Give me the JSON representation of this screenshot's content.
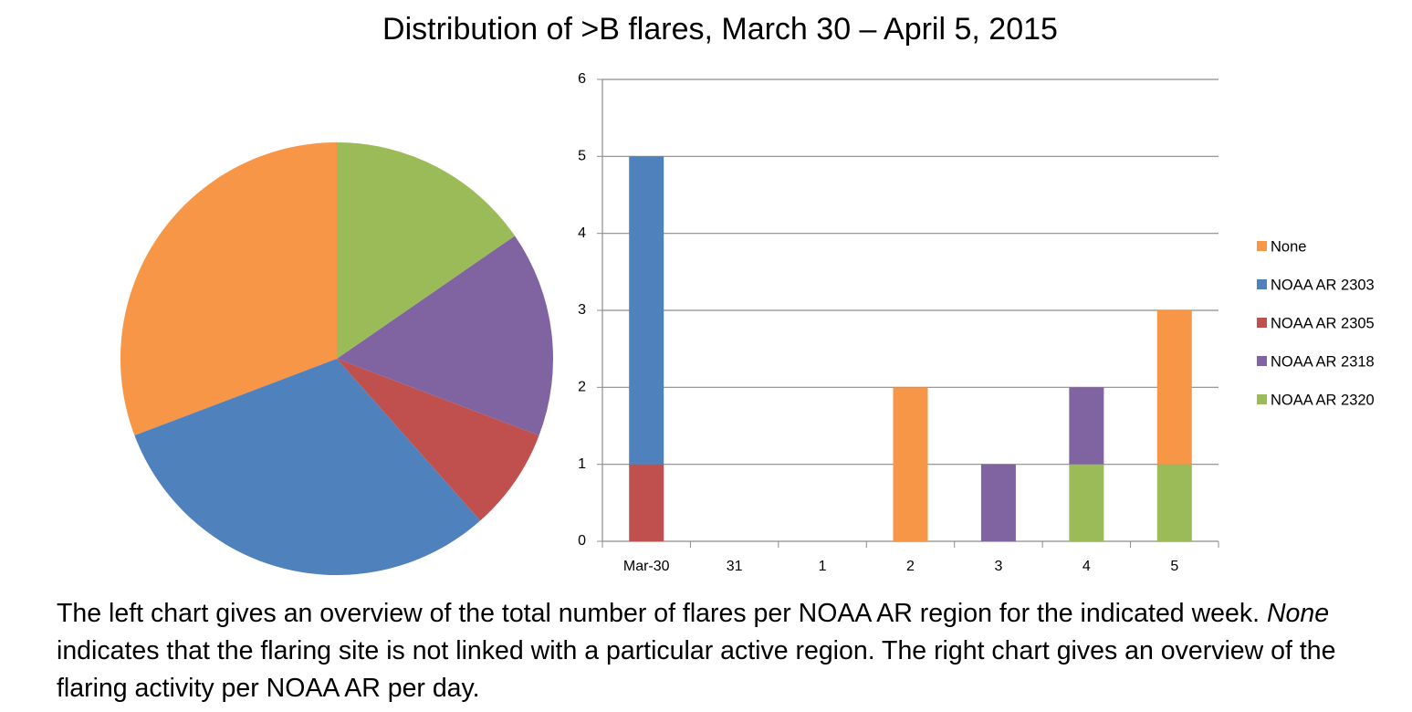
{
  "title": "Distribution of >B flares, March 30 – April 5, 2015",
  "caption": [
    "The left chart gives an overview of the total number of flares per NOAA AR region for the indicated week. ",
    "None",
    " indicates that the flaring site is not linked with a particular active region. The right chart gives an overview of the flaring activity per NOAA AR per day."
  ],
  "chart_data": [
    {
      "type": "pie",
      "values": [
        4,
        4,
        1,
        2,
        2
      ],
      "colors": [
        "#f79646",
        "#4f81bd",
        "#c0504d",
        "#8064a2",
        "#9bbb59"
      ]
    },
    {
      "type": "stacked-bar",
      "categories": [
        "Mar-30",
        "31",
        "1",
        "2",
        "3",
        "4",
        "5"
      ],
      "series": [
        {
          "name": "None",
          "color": "#f79646",
          "values": [
            0,
            0,
            0,
            2,
            0,
            0,
            2
          ]
        },
        {
          "name": "NOAA AR 2303",
          "color": "#4f81bd",
          "values": [
            4,
            0,
            0,
            0,
            0,
            0,
            0
          ]
        },
        {
          "name": "NOAA AR 2305",
          "color": "#c0504d",
          "values": [
            1,
            0,
            0,
            0,
            0,
            0,
            0
          ]
        },
        {
          "name": "NOAA AR 2318",
          "color": "#8064a2",
          "values": [
            0,
            0,
            0,
            0,
            1,
            1,
            0
          ]
        },
        {
          "name": "NOAA AR 2320",
          "color": "#9bbb59",
          "values": [
            0,
            0,
            0,
            0,
            0,
            1,
            1
          ]
        }
      ],
      "ylim": [
        0,
        6
      ],
      "yticks": [
        0,
        1,
        2,
        3,
        4,
        5,
        6
      ],
      "grid": true,
      "legend": "right"
    }
  ]
}
